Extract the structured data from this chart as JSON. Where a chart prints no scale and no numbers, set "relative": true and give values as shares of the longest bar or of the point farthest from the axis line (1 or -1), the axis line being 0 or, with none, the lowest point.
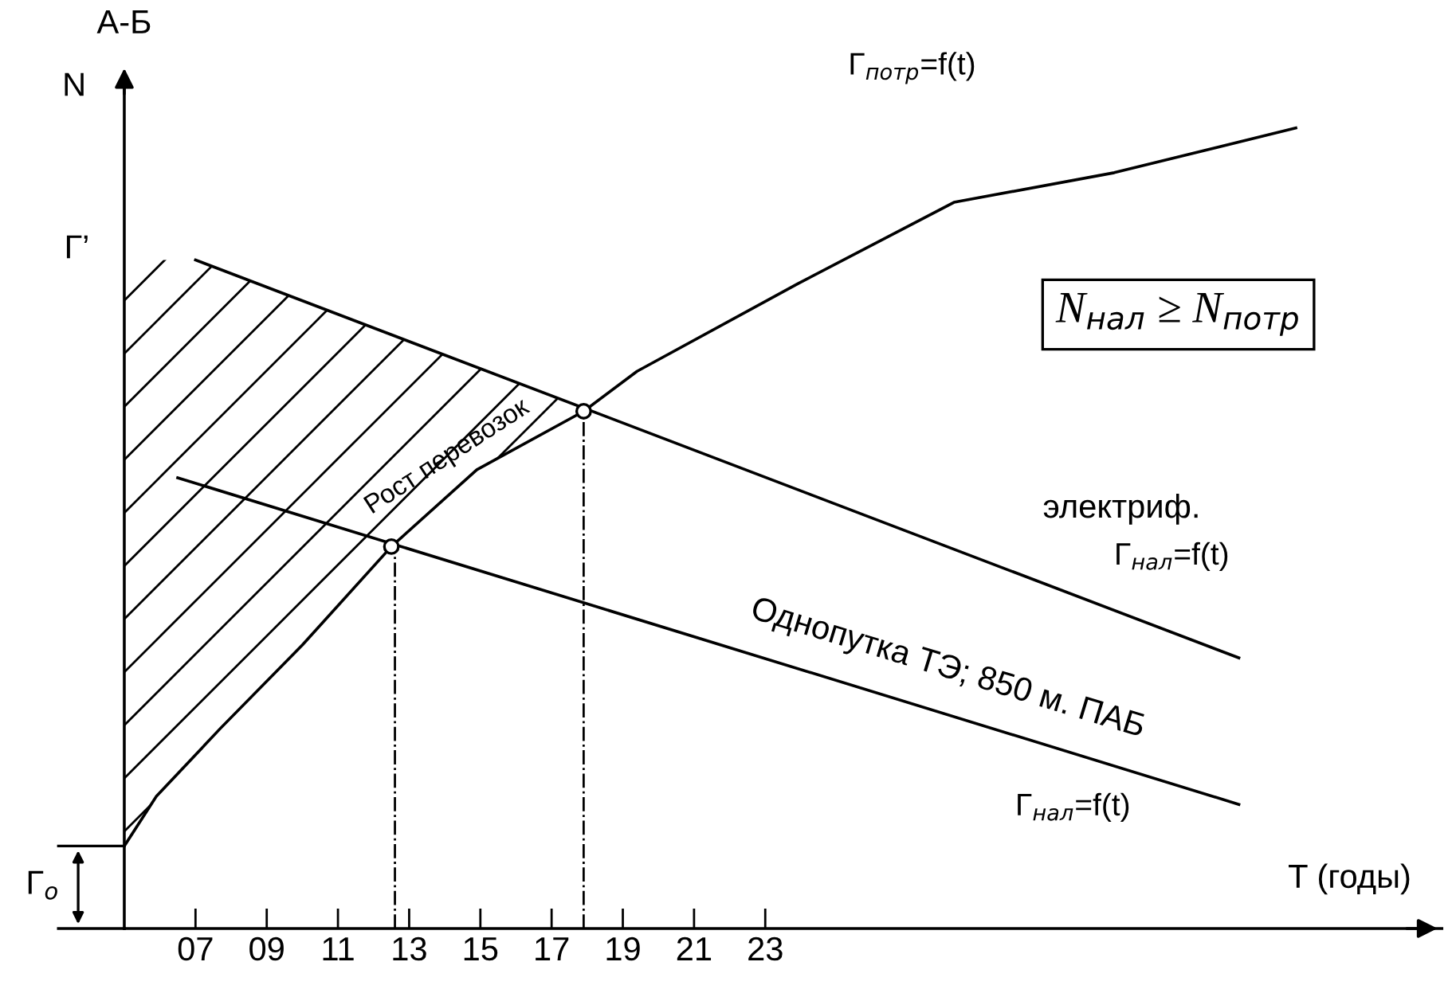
{
  "chart_data": {
    "type": "line",
    "relative": true,
    "title": "А-Б",
    "ylabel": "N",
    "xlabel": "T (годы)",
    "xlim": [
      5,
      42
    ],
    "xticks": [
      {
        "value": 7,
        "label": "07"
      },
      {
        "value": 9,
        "label": "09"
      },
      11,
      13,
      15,
      17,
      19,
      21,
      23
    ],
    "series": [
      {
        "color": "#000000",
        "x": [
          5.0,
          5.9,
          7.7,
          10.0,
          12.5,
          14.9,
          17.9,
          19.4,
          23.9,
          28.3,
          32.8,
          37.9
        ],
        "values": [
          0.103,
          0.165,
          0.25,
          0.354,
          0.477,
          0.573,
          0.646,
          0.696,
          0.805,
          0.907,
          0.944,
          1.0
        ]
      },
      {
        "color": "#000000",
        "x": [
          7.0,
          36.3
        ],
        "values": [
          0.835,
          0.338
        ]
      },
      {
        "color": "#000000",
        "x": [
          6.5,
          36.3
        ],
        "values": [
          0.563,
          0.155
        ]
      },
      {
        "type": "scatter",
        "marker": "circle",
        "color": "#000000",
        "x": [
          12.5,
          17.9
        ],
        "values": [
          0.477,
          0.646
        ]
      }
    ],
    "ref_lines": [
      {
        "axis": "x",
        "value": 12.6,
        "line_style": "dashed"
      },
      {
        "axis": "x",
        "value": 17.9,
        "line_style": "dashed"
      }
    ],
    "annotations": [
      "Г$_{потр}$=f(t)",
      "N$_{нал}$ ≥ N$_{потр}$",
      "электриф.",
      "Г$_{нал}$=f(t)",
      "Однопутка ТЭ; 850 м. ПАБ",
      "Г$_{нал}$=f(t)",
      "Рост перевозок",
      "Г’",
      "Г$_{о}$"
    ],
    "grid": false,
    "legend": false,
    "line_style": "solid",
    "marker": "none"
  }
}
